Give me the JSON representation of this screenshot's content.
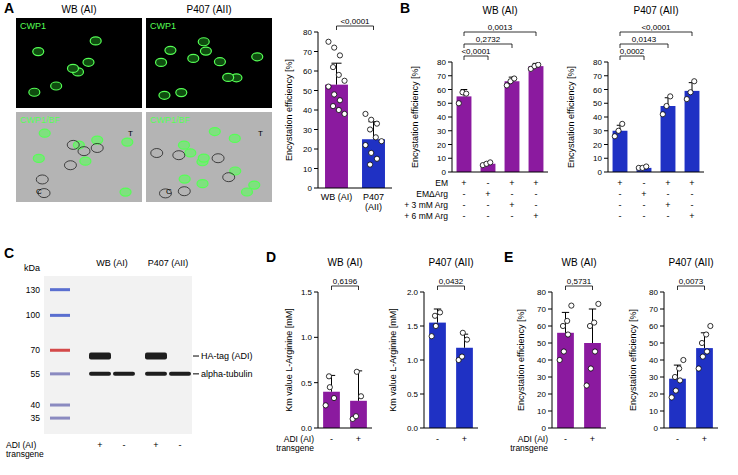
{
  "chart_data": [
    {
      "type": "bar",
      "y_label": "Encystation efficiency [%]",
      "categories": [
        "WB (AI)",
        "P407 (AII)"
      ],
      "values": [
        53,
        25
      ],
      "errors": [
        11,
        9
      ],
      "points": [
        [
          75,
          72,
          68,
          62,
          58,
          55,
          52,
          48,
          45,
          42,
          40,
          38
        ],
        [
          38,
          35,
          33,
          30,
          26,
          24,
          22,
          18,
          15,
          12
        ]
      ],
      "colors": [
        "#8b1a9f",
        "#1f31c4"
      ],
      "ylim": [
        0,
        80
      ],
      "yticks": [
        0,
        10,
        20,
        30,
        40,
        50,
        60,
        70,
        80
      ],
      "grid": false,
      "comparisons": [
        {
          "from": 0,
          "to": 1,
          "label": "<0,0001"
        }
      ]
    },
    {
      "type": "bar",
      "panel_label": "B",
      "title": "WB (AI)",
      "y_label": "Encystation efficiency [%]",
      "categories": [
        null,
        null,
        null,
        null
      ],
      "values": [
        55,
        6,
        66,
        77
      ],
      "errors": [
        5,
        1,
        3,
        2
      ],
      "points": [
        [
          50,
          58,
          57
        ],
        [
          5,
          6,
          7
        ],
        [
          63,
          66,
          68
        ],
        [
          75,
          77,
          78
        ]
      ],
      "colors": [
        "#8b1a9f",
        "#8b1a9f",
        "#8b1a9f",
        "#8b1a9f"
      ],
      "ylim": [
        0,
        80
      ],
      "yticks": [
        0,
        10,
        20,
        30,
        40,
        50,
        60,
        70,
        80
      ],
      "grid": false,
      "comparisons": [
        {
          "from": 0,
          "to": 1,
          "label": "<0,0001"
        },
        {
          "from": 0,
          "to": 2,
          "label": "0,2732"
        },
        {
          "from": 0,
          "to": 3,
          "label": "0,0013"
        }
      ],
      "conditions": {
        "rows": [
          {
            "label": "EM",
            "marks": [
              "+",
              "-",
              "+",
              "+"
            ]
          },
          {
            "label": "EMΔArg",
            "marks": [
              "-",
              "+",
              "-",
              "-"
            ]
          },
          {
            "label": "+ 3 mM Arg",
            "marks": [
              "-",
              "-",
              "+",
              "-"
            ]
          },
          {
            "label": "+ 6 mM Arg",
            "marks": [
              "-",
              "-",
              "-",
              "+"
            ]
          }
        ]
      }
    },
    {
      "type": "bar",
      "title": "P407 (AII)",
      "y_label": "Encystation efficiency [%]",
      "categories": [
        null,
        null,
        null,
        null
      ],
      "values": [
        30,
        3,
        48,
        59
      ],
      "errors": [
        4,
        0.5,
        6,
        6
      ],
      "points": [
        [
          26,
          30,
          35
        ],
        [
          3,
          3,
          4
        ],
        [
          42,
          48,
          55
        ],
        [
          53,
          58,
          66
        ]
      ],
      "colors": [
        "#1f31c4",
        "#1f31c4",
        "#1f31c4",
        "#1f31c4"
      ],
      "ylim": [
        0,
        80
      ],
      "yticks": [
        0,
        10,
        20,
        30,
        40,
        50,
        60,
        70,
        80
      ],
      "grid": false,
      "comparisons": [
        {
          "from": 0,
          "to": 1,
          "label": "0,0002"
        },
        {
          "from": 0,
          "to": 2,
          "label": "0,0143"
        },
        {
          "from": 0,
          "to": 3,
          "label": "<0,0001"
        }
      ],
      "conditions": {
        "rows": [
          {
            "marks": [
              "+",
              "-",
              "+",
              "+"
            ]
          },
          {
            "marks": [
              "-",
              "+",
              "-",
              "-"
            ]
          },
          {
            "marks": [
              "-",
              "-",
              "+",
              "-"
            ]
          },
          {
            "marks": [
              "-",
              "-",
              "-",
              "+"
            ]
          }
        ]
      }
    },
    {
      "type": "bar",
      "panel_label": "D",
      "title": "WB (AI)",
      "y_label": "Km value L-Arginine [mM]",
      "categories": [
        null,
        null
      ],
      "values": [
        0.4,
        0.3
      ],
      "errors": [
        0.18,
        0.33
      ],
      "points": [
        [
          0.25,
          0.45,
          0.33,
          0.57
        ],
        [
          0.1,
          0.62,
          0.35,
          0.13
        ]
      ],
      "colors": [
        "#8b1a9f",
        "#8b1a9f"
      ],
      "ylim": [
        0,
        1.5
      ],
      "yticks": [
        {
          "value": 0,
          "label": "0.0"
        },
        {
          "value": 0.5,
          "label": "0.5"
        },
        {
          "value": 1,
          "label": "1.0"
        },
        {
          "value": 1.5,
          "label": "1.5"
        }
      ],
      "grid": false,
      "comparisons": [
        {
          "from": 0,
          "to": 1,
          "label": "0,6196"
        }
      ],
      "conditions": {
        "rows": [
          {
            "label": "ADI (AI) transgene",
            "marks": [
              "-",
              "+"
            ]
          }
        ]
      }
    },
    {
      "type": "bar",
      "title": "P407 (AII)",
      "y_label": "Km value L-Arginine [mM]",
      "categories": [
        null,
        null
      ],
      "values": [
        1.55,
        1.18
      ],
      "errors": [
        0.2,
        0.2
      ],
      "points": [
        [
          1.35,
          1.5,
          1.7,
          1.65
        ],
        [
          1.0,
          1.4,
          1.3,
          1.05
        ]
      ],
      "colors": [
        "#1f31c4",
        "#1f31c4"
      ],
      "ylim": [
        0,
        2
      ],
      "yticks": [
        {
          "value": 0,
          "label": "0.0"
        },
        {
          "value": 0.5,
          "label": "0.5"
        },
        {
          "value": 1,
          "label": "1.0"
        },
        {
          "value": 1.5,
          "label": "1.5"
        },
        {
          "value": 2,
          "label": "2.0"
        }
      ],
      "grid": false,
      "comparisons": [
        {
          "from": 0,
          "to": 1,
          "label": "0,0432"
        }
      ],
      "conditions": {
        "rows": [
          {
            "marks": [
              "-",
              "+"
            ]
          }
        ]
      }
    },
    {
      "type": "bar",
      "panel_label": "E",
      "title": "WB (AI)",
      "y_label": "Encystation efficiency [%]",
      "categories": [
        null,
        null
      ],
      "values": [
        56,
        50
      ],
      "errors": [
        12,
        20
      ],
      "points": [
        [
          40,
          45,
          55,
          60,
          63,
          72
        ],
        [
          25,
          35,
          45,
          60,
          62,
          73
        ]
      ],
      "colors": [
        "#8b1a9f",
        "#8b1a9f"
      ],
      "ylim": [
        0,
        80
      ],
      "yticks": [
        0,
        10,
        20,
        30,
        40,
        50,
        60,
        70,
        80
      ],
      "grid": false,
      "comparisons": [
        {
          "from": 0,
          "to": 1,
          "label": "0,5731"
        }
      ],
      "conditions": {
        "rows": [
          {
            "label": "ADI (AI) transgene",
            "marks": [
              "-",
              "+"
            ]
          }
        ]
      }
    },
    {
      "type": "bar",
      "title": "P407 (AII)",
      "y_label": "Encystation efficiency [%]",
      "categories": [
        null,
        null
      ],
      "values": [
        29,
        47
      ],
      "errors": [
        8,
        9
      ],
      "points": [
        [
          18,
          22,
          28,
          30,
          35,
          40
        ],
        [
          35,
          42,
          45,
          50,
          55,
          60
        ]
      ],
      "colors": [
        "#1f31c4",
        "#1f31c4"
      ],
      "ylim": [
        0,
        80
      ],
      "yticks": [
        0,
        10,
        20,
        30,
        40,
        50,
        60,
        70,
        80
      ],
      "grid": false,
      "comparisons": [
        {
          "from": 0,
          "to": 1,
          "label": "0,0073"
        }
      ],
      "conditions": {
        "rows": [
          {
            "marks": [
              "-",
              "+"
            ]
          }
        ]
      }
    }
  ],
  "micrographs": {
    "panel_label": "A",
    "columns": [
      "WB (AI)",
      "P407 (AII)"
    ],
    "rows": [
      "CWP1",
      "CWP1/BF"
    ],
    "markers": [
      "T",
      "C"
    ]
  },
  "blot": {
    "panel_label": "C",
    "unit": "kDa",
    "ladder": [
      130,
      100,
      70,
      55,
      40,
      35
    ],
    "groups": [
      "WB (AI)",
      "P407 (AII)"
    ],
    "row_label": "ADI (AI) transgene",
    "transgene": [
      "+",
      "-",
      "+",
      "-"
    ],
    "bands": [
      {
        "label": "HA-tag (ADI)",
        "kda": 66,
        "lanes": [
          0,
          2
        ]
      },
      {
        "label": "alpha-tubulin",
        "kda": 55,
        "lanes": [
          0,
          1,
          2,
          3
        ]
      }
    ]
  }
}
